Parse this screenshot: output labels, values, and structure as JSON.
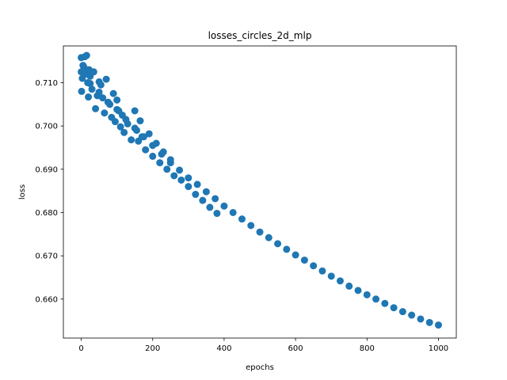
{
  "chart_data": {
    "type": "scatter",
    "title": "losses_circles_2d_mlp",
    "xlabel": "epochs",
    "ylabel": "loss",
    "xlim": [
      -50,
      1050
    ],
    "ylim": [
      0.651,
      0.7185
    ],
    "xticks": [
      0,
      200,
      400,
      600,
      800,
      1000
    ],
    "yticks": [
      0.66,
      0.67,
      0.68,
      0.69,
      0.7,
      0.71
    ],
    "ytick_labels": [
      "0.660",
      "0.670",
      "0.680",
      "0.690",
      "0.700",
      "0.710"
    ],
    "grid": false,
    "marker_color": "#1f77b4",
    "series": [
      {
        "x": [
          0,
          25,
          50,
          75,
          100,
          125,
          150,
          175,
          200,
          225,
          250,
          275,
          300,
          325,
          350,
          375,
          400,
          425,
          450,
          475,
          500,
          525,
          550,
          575,
          600,
          625,
          650,
          675,
          700,
          725,
          750,
          775,
          800,
          825,
          850,
          875,
          900,
          925,
          950,
          975,
          1000
        ],
        "y": [
          0.7125,
          0.7098,
          0.7078,
          0.7055,
          0.7038,
          0.7015,
          0.6995,
          0.6975,
          0.6955,
          0.6935,
          0.6915,
          0.6898,
          0.688,
          0.6865,
          0.6848,
          0.6832,
          0.6815,
          0.68,
          0.6785,
          0.677,
          0.6755,
          0.6742,
          0.6728,
          0.6715,
          0.6702,
          0.669,
          0.6677,
          0.6665,
          0.6653,
          0.6642,
          0.663,
          0.662,
          0.661,
          0.66,
          0.659,
          0.658,
          0.6571,
          0.6563,
          0.6554,
          0.6546,
          0.654
        ]
      },
      {
        "x": [
          0,
          1,
          3,
          5,
          8,
          10,
          12,
          15,
          18,
          20,
          22,
          25,
          30,
          35,
          40,
          45,
          50,
          55,
          60,
          65,
          70,
          80,
          85,
          90,
          95,
          100,
          105,
          110,
          115,
          120,
          130,
          140,
          150,
          155,
          160,
          165,
          170,
          180,
          190,
          200,
          210,
          220,
          230,
          240,
          250,
          260,
          280,
          300,
          320,
          340,
          360,
          380
        ],
        "y": [
          0.7158,
          0.708,
          0.711,
          0.714,
          0.7135,
          0.716,
          0.712,
          0.7163,
          0.71,
          0.7067,
          0.713,
          0.7115,
          0.7085,
          0.7125,
          0.704,
          0.707,
          0.7102,
          0.7095,
          0.7065,
          0.703,
          0.7108,
          0.705,
          0.702,
          0.7075,
          0.701,
          0.706,
          0.7035,
          0.6998,
          0.7025,
          0.6985,
          0.7005,
          0.6968,
          0.7035,
          0.699,
          0.6965,
          0.7012,
          0.6975,
          0.6945,
          0.6982,
          0.693,
          0.696,
          0.6915,
          0.694,
          0.69,
          0.6922,
          0.6885,
          0.6875,
          0.686,
          0.6842,
          0.6828,
          0.6812,
          0.6798
        ]
      }
    ]
  }
}
